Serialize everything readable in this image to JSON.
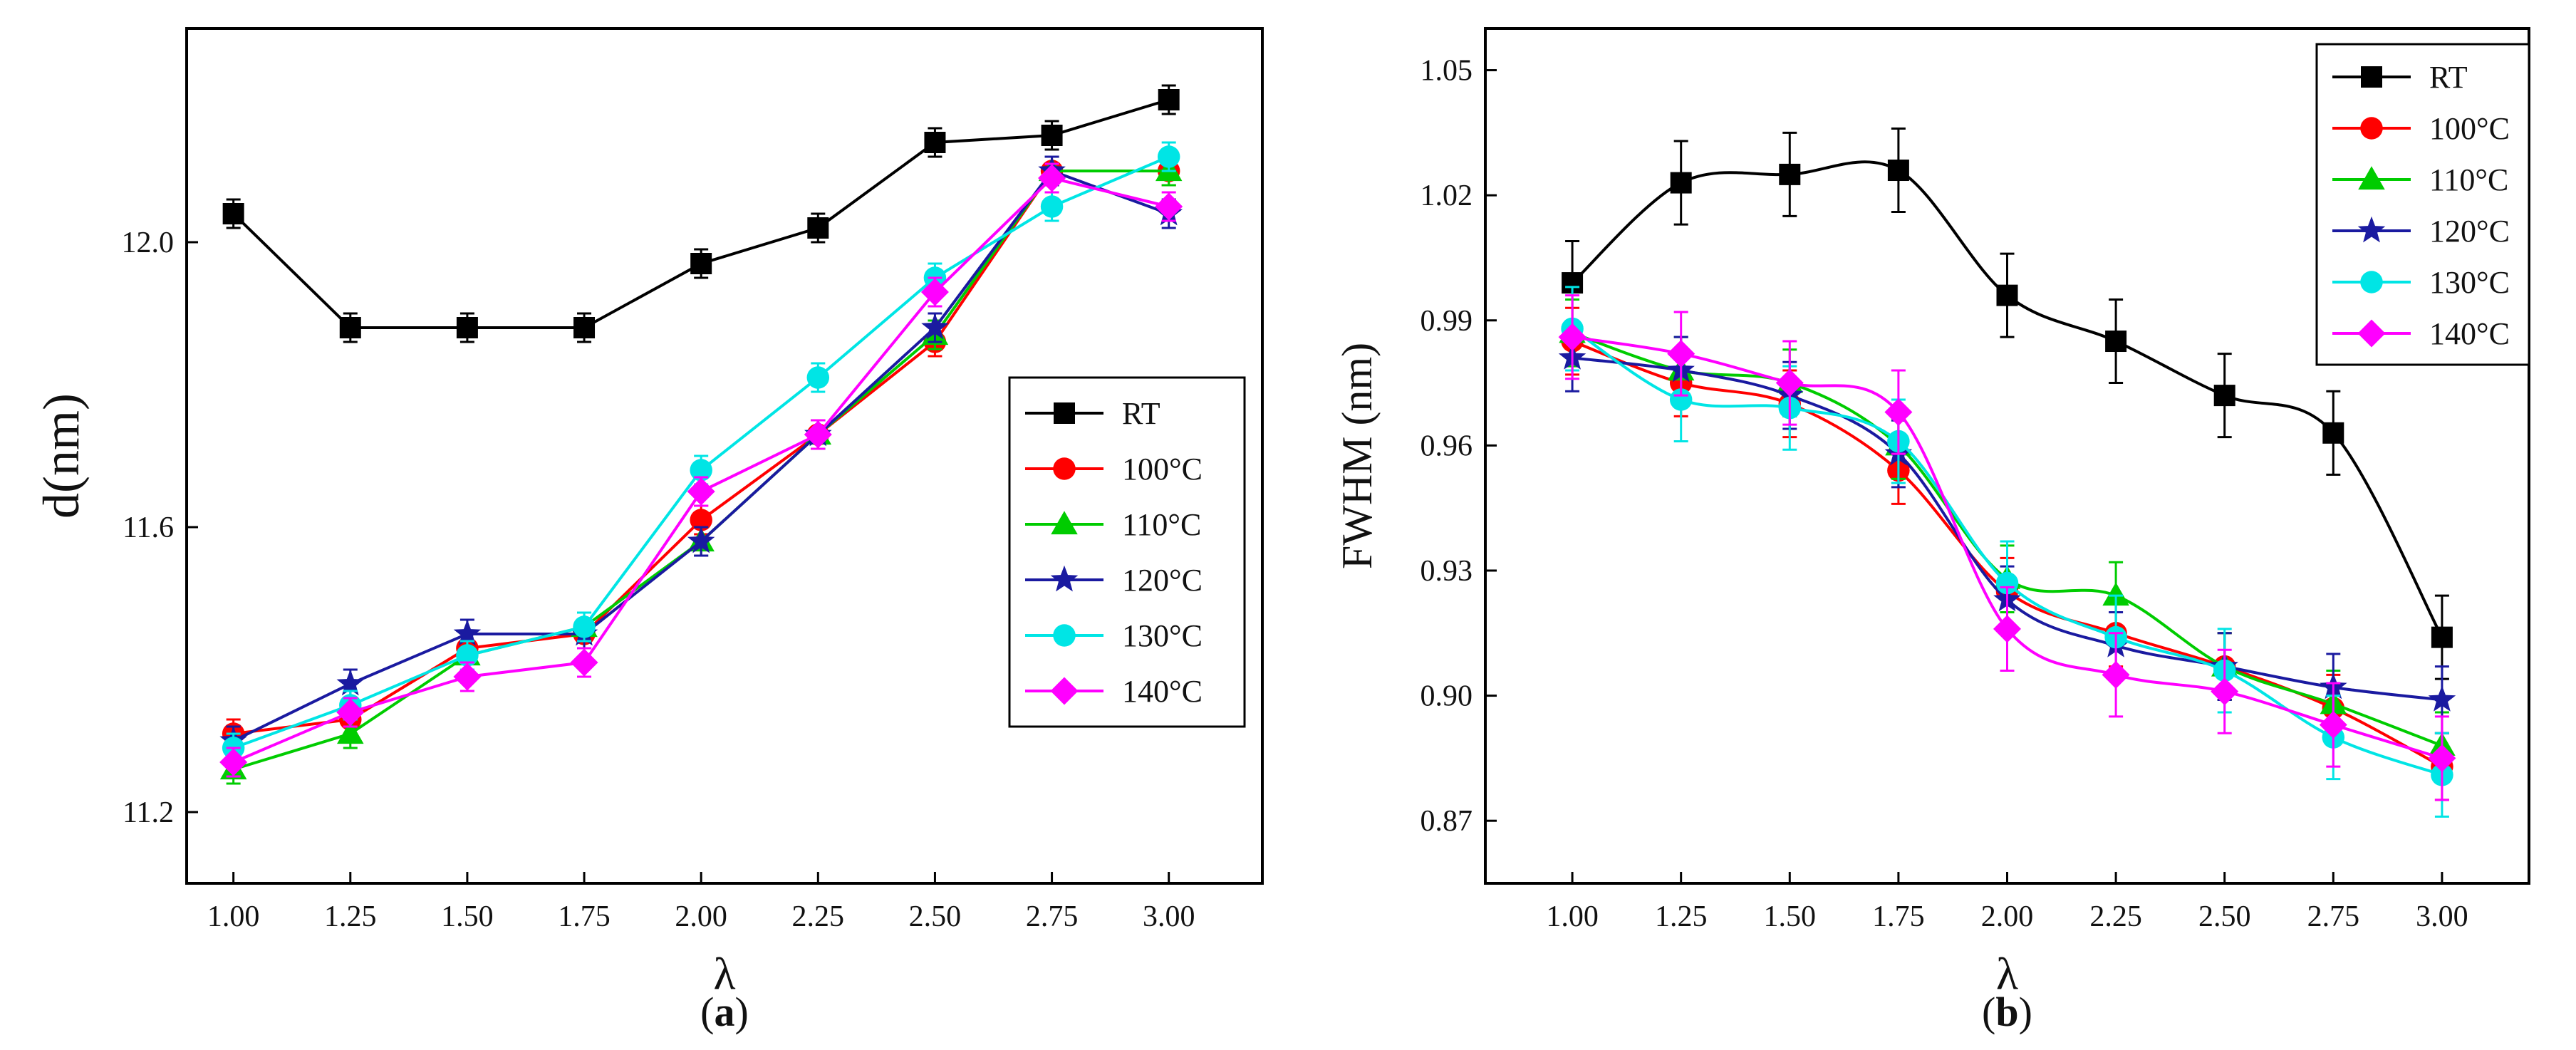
{
  "chart_data": [
    {
      "type": "line",
      "panel_label_open": "(",
      "panel_label_letter": "a",
      "panel_label_close": ")",
      "xlabel": "λ",
      "ylabel": "d(nm)",
      "xlim": [
        0.9,
        3.2
      ],
      "ylim": [
        11.1,
        12.3
      ],
      "x": [
        1.0,
        1.25,
        1.5,
        1.75,
        2.0,
        2.25,
        2.5,
        2.75,
        3.0
      ],
      "xticks": [
        "1.00",
        "1.25",
        "1.50",
        "1.75",
        "2.00",
        "2.25",
        "2.50",
        "2.75",
        "3.00"
      ],
      "yticks": [
        11.2,
        11.6,
        12.0
      ],
      "ytick_labels": [
        "11.2",
        "11.6",
        "12.0"
      ],
      "legend_position": "center-right",
      "series": [
        {
          "name": "RT",
          "marker": "square",
          "color": "#000000",
          "values": [
            12.04,
            11.88,
            11.88,
            11.88,
            11.97,
            12.02,
            12.14,
            12.15,
            12.2
          ],
          "error": 0.02
        },
        {
          "name": "100°C",
          "marker": "circle",
          "color": "#ff0000",
          "values": [
            11.31,
            11.33,
            11.43,
            11.45,
            11.61,
            11.73,
            11.86,
            12.1,
            12.1
          ],
          "error": 0.02
        },
        {
          "name": "110°C",
          "marker": "triangle",
          "color": "#00cc00",
          "values": [
            11.26,
            11.31,
            11.42,
            11.46,
            11.58,
            11.73,
            11.87,
            12.1,
            12.1
          ],
          "error": 0.02
        },
        {
          "name": "120°C",
          "marker": "star",
          "color": "#1a1aa0",
          "values": [
            11.3,
            11.38,
            11.45,
            11.45,
            11.58,
            11.73,
            11.88,
            12.1,
            12.04
          ],
          "error": 0.02
        },
        {
          "name": "130°C",
          "marker": "circle",
          "color": "#00e5e5",
          "values": [
            11.29,
            11.35,
            11.42,
            11.46,
            11.68,
            11.81,
            11.95,
            12.05,
            12.12
          ],
          "error": 0.02
        },
        {
          "name": "140°C",
          "marker": "diamond",
          "color": "#ff00ff",
          "values": [
            11.27,
            11.34,
            11.39,
            11.41,
            11.65,
            11.73,
            11.93,
            12.09,
            12.05
          ],
          "error": 0.02
        }
      ]
    },
    {
      "type": "line",
      "panel_label_open": "(",
      "panel_label_letter": "b",
      "panel_label_close": ")",
      "xlabel": "λ",
      "ylabel": "FWHM (nm)",
      "xlim": [
        0.8,
        3.2
      ],
      "ylim": [
        0.855,
        1.06
      ],
      "x": [
        1.0,
        1.25,
        1.5,
        1.75,
        2.0,
        2.25,
        2.5,
        2.75,
        3.0
      ],
      "xticks": [
        "1.00",
        "1.25",
        "1.50",
        "1.75",
        "2.00",
        "2.25",
        "2.50",
        "2.75",
        "3.00"
      ],
      "yticks": [
        0.87,
        0.9,
        0.93,
        0.96,
        0.99,
        1.02,
        1.05
      ],
      "ytick_labels": [
        "0.87",
        "0.90",
        "0.93",
        "0.96",
        "0.99",
        "1.02",
        "1.05"
      ],
      "legend_position": "top-right",
      "series": [
        {
          "name": "RT",
          "marker": "square",
          "color": "#000000",
          "values": [
            0.999,
            1.023,
            1.025,
            1.026,
            0.996,
            0.985,
            0.972,
            0.963,
            0.914
          ],
          "error": 0.01
        },
        {
          "name": "100°C",
          "marker": "circle",
          "color": "#ff0000",
          "values": [
            0.985,
            0.975,
            0.97,
            0.954,
            0.925,
            0.915,
            0.907,
            0.897,
            0.883
          ],
          "error": 0.008
        },
        {
          "name": "110°C",
          "marker": "triangle",
          "color": "#00cc00",
          "values": [
            0.987,
            0.978,
            0.975,
            0.96,
            0.928,
            0.924,
            0.907,
            0.898,
            0.888
          ],
          "error": 0.008
        },
        {
          "name": "120°C",
          "marker": "star",
          "color": "#1a1aa0",
          "values": [
            0.981,
            0.978,
            0.972,
            0.958,
            0.923,
            0.912,
            0.907,
            0.902,
            0.899
          ],
          "error": 0.008
        },
        {
          "name": "130°C",
          "marker": "circle",
          "color": "#00e5e5",
          "values": [
            0.988,
            0.971,
            0.969,
            0.961,
            0.927,
            0.914,
            0.906,
            0.89,
            0.881
          ],
          "error": 0.01
        },
        {
          "name": "140°C",
          "marker": "diamond",
          "color": "#ff00ff",
          "values": [
            0.986,
            0.982,
            0.975,
            0.968,
            0.916,
            0.905,
            0.901,
            0.893,
            0.885
          ],
          "error": 0.01
        }
      ]
    }
  ]
}
